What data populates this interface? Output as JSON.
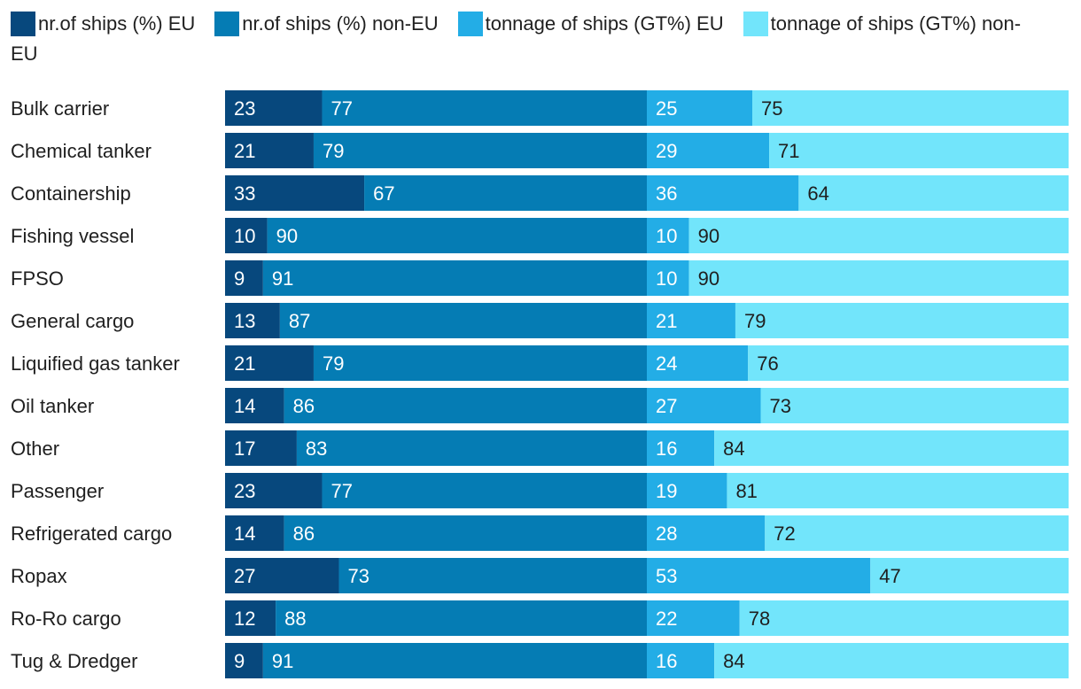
{
  "chart_data": {
    "type": "bar",
    "orientation": "horizontal",
    "stacked": "percent",
    "title": "",
    "xlabel": "",
    "ylabel": "",
    "grid": false,
    "legend_position": "top",
    "categories": [
      "Bulk carrier",
      "Chemical tanker",
      "Containership",
      "Fishing vessel",
      "FPSO",
      "General cargo",
      "Liquified gas tanker",
      "Oil tanker",
      "Other",
      "Passenger",
      "Refrigerated cargo",
      "Ropax",
      "Ro-Ro cargo",
      "Tug & Dredger"
    ],
    "groups": [
      {
        "name": "nr.of ships",
        "series": [
          {
            "name": "nr.of ships (%) EU",
            "color": "#07487d",
            "label_color": "#ffffff",
            "values": [
              23,
              21,
              33,
              10,
              9,
              13,
              21,
              14,
              17,
              23,
              14,
              27,
              12,
              9
            ]
          },
          {
            "name": "nr.of ships (%) non-EU",
            "color": "#057cb4",
            "label_color": "#ffffff",
            "values": [
              77,
              79,
              67,
              90,
              91,
              87,
              79,
              86,
              83,
              77,
              86,
              73,
              88,
              91
            ]
          }
        ]
      },
      {
        "name": "tonnage of ships",
        "series": [
          {
            "name": "tonnage of ships (GT%) EU",
            "color": "#23ade6",
            "label_color": "#ffffff",
            "values": [
              25,
              29,
              36,
              10,
              10,
              21,
              24,
              27,
              16,
              19,
              28,
              53,
              22,
              16
            ]
          },
          {
            "name": "tonnage of ships (GT%) non-EU",
            "color": "#72e5fb",
            "label_color": "#1f1f1f",
            "values": [
              75,
              71,
              64,
              90,
              90,
              79,
              76,
              73,
              84,
              81,
              72,
              47,
              78,
              84
            ]
          }
        ]
      }
    ]
  }
}
